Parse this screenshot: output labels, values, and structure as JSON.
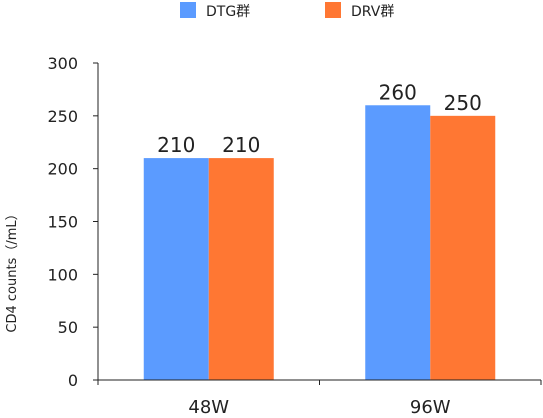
{
  "chart_data": {
    "type": "bar",
    "title": "",
    "xlabel": "",
    "ylabel": "CD4 counts（/mL）",
    "categories": [
      "48W",
      "96W"
    ],
    "series": [
      {
        "name": "DTG群",
        "values": [
          210,
          260
        ],
        "color": "#5B9BFF"
      },
      {
        "name": "DRV群",
        "values": [
          210,
          250
        ],
        "color": "#FF7733"
      }
    ],
    "ylim": [
      0,
      300
    ],
    "yticks": [
      0,
      50,
      100,
      150,
      200,
      250,
      300
    ],
    "grid": false,
    "legend_position": "top"
  }
}
